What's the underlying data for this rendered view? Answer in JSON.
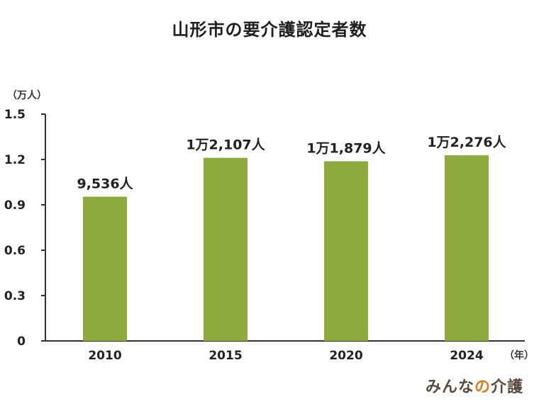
{
  "title": "山形市の要介護認定者数",
  "y_unit": "（万人）",
  "x_unit": "（年）",
  "logo": {
    "part1": "みんな",
    "part2": "の",
    "part3": "介護"
  },
  "colors": {
    "bar": "#8cab3c",
    "axis": "#333333",
    "text": "#222222"
  },
  "chart_data": {
    "type": "bar",
    "title": "山形市の要介護認定者数",
    "xlabel": "",
    "ylabel": "",
    "categories": [
      "2010",
      "2015",
      "2020",
      "2024"
    ],
    "values": [
      0.9536,
      1.2107,
      1.1879,
      1.2276
    ],
    "data_labels": [
      "9,536人",
      "1万2,107人",
      "1万1,879人",
      "1万2,276人"
    ],
    "ylim": [
      0,
      1.5
    ],
    "yticks": [
      0,
      0.3,
      0.6,
      0.9,
      1.2,
      1.5
    ],
    "ytick_labels": [
      "0",
      "0.3",
      "0.6",
      "0.9",
      "1.2",
      "1.5"
    ],
    "grid": false,
    "legend": "none"
  }
}
